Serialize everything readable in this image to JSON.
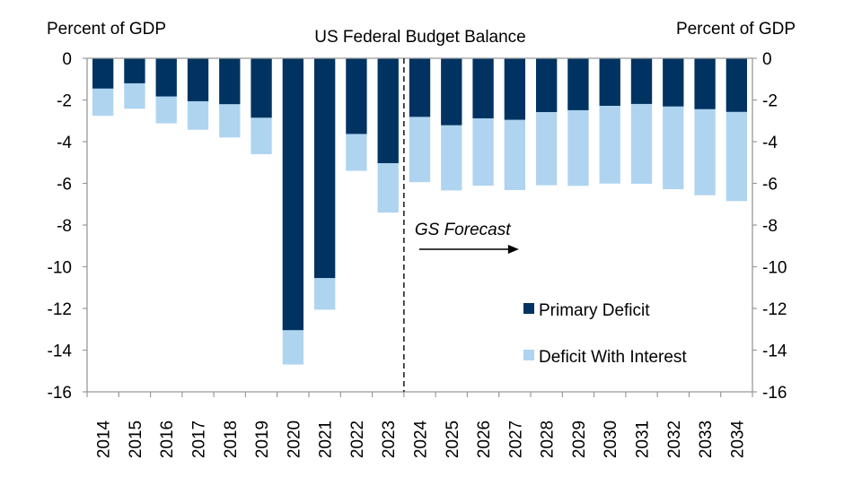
{
  "chart_data": {
    "type": "bar",
    "stacked": true,
    "title": "US Federal Budget Balance",
    "ylabel_left": "Percent of GDP",
    "ylabel_right": "Percent of GDP",
    "xlabel": "",
    "ylim": [
      -16,
      0
    ],
    "yticks": [
      0,
      -2,
      -4,
      -6,
      -8,
      -10,
      -12,
      -14,
      -16
    ],
    "categories": [
      "2014",
      "2015",
      "2016",
      "2017",
      "2018",
      "2019",
      "2020",
      "2021",
      "2022",
      "2023",
      "2024",
      "2025",
      "2026",
      "2027",
      "2028",
      "2029",
      "2030",
      "2031",
      "2032",
      "2033",
      "2034"
    ],
    "series": [
      {
        "name": "Primary Deficit",
        "color": "#003361",
        "values": [
          -1.45,
          -1.2,
          -1.83,
          -2.06,
          -2.2,
          -2.85,
          -13.04,
          -10.54,
          -3.63,
          -5.03,
          -2.81,
          -3.21,
          -2.88,
          -2.95,
          -2.58,
          -2.49,
          -2.28,
          -2.19,
          -2.31,
          -2.44,
          -2.57
        ]
      },
      {
        "name": "Deficit With Interest",
        "color": "#aed4f0",
        "values": [
          -2.76,
          -2.42,
          -3.12,
          -3.43,
          -3.8,
          -4.6,
          -14.69,
          -12.06,
          -5.4,
          -7.4,
          -5.94,
          -6.34,
          -6.11,
          -6.32,
          -6.09,
          -6.12,
          -6.01,
          -6.02,
          -6.28,
          -6.57,
          -6.85
        ]
      }
    ],
    "annotation": {
      "text": "GS Forecast",
      "forecast_start": "2024",
      "arrow": "right"
    },
    "grid": false,
    "legend": "bottom-right"
  }
}
